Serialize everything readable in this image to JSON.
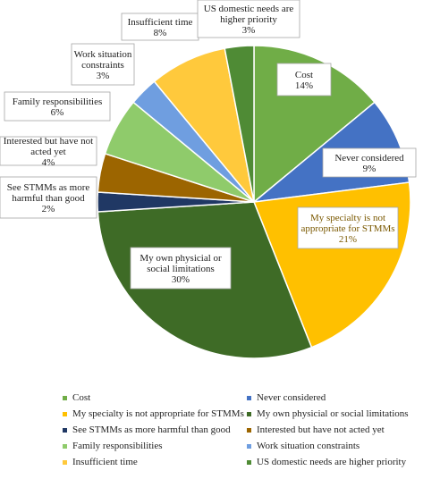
{
  "chart_data": {
    "type": "pie",
    "title": "",
    "slices": [
      {
        "label": "Cost",
        "value": 14,
        "display": "14%",
        "color": "#70ad47",
        "chart_label": [
          "Cost"
        ]
      },
      {
        "label": "Never considered",
        "value": 9,
        "display": "9%",
        "color": "#4472c4",
        "chart_label": [
          "Never considered"
        ]
      },
      {
        "label": "My specialty is not appropriate for STMMs",
        "value": 21,
        "display": "21%",
        "color": "#ffc000",
        "chart_label": [
          "My specialty is not",
          "appropriate for STMMs"
        ]
      },
      {
        "label": "My own physicial or social limitations",
        "value": 30,
        "display": "30%",
        "color": "#3e6b26",
        "chart_label": [
          "My own physicial or",
          "social limitations"
        ]
      },
      {
        "label": "See STMMs as more harmful than good",
        "value": 2,
        "display": "2%",
        "color": "#203864",
        "chart_label": [
          "See STMMs as more",
          "harmful than good"
        ]
      },
      {
        "label": "Interested but have not acted yet",
        "value": 4,
        "display": "4%",
        "color": "#9c6500",
        "chart_label": [
          "Interested but have not",
          "acted yet"
        ]
      },
      {
        "label": "Family responsibilities",
        "value": 6,
        "display": "6%",
        "color": "#8fcb6b",
        "chart_label": [
          "Family responsibilities"
        ]
      },
      {
        "label": "Work situation constraints",
        "value": 3,
        "display": "3%",
        "color": "#6f9ee0",
        "chart_label": [
          "Work situation",
          "constraints"
        ]
      },
      {
        "label": "Insufficient time",
        "value": 8,
        "display": "8%",
        "color": "#ffc93c",
        "chart_label": [
          "Insufficient time"
        ]
      },
      {
        "label": "US domestic needs are higher priority",
        "value": 3,
        "display": "3%",
        "color": "#4f8b35",
        "chart_label": [
          "US domestic needs are",
          "higher priority"
        ]
      }
    ],
    "legend_position": "bottom",
    "legend_entries": [
      "Cost",
      "Never considered",
      "My specialty is not appropriate for STMMs",
      "My own physicial or social limitations",
      "See STMMs as more harmful than good",
      "Interested but have not acted yet",
      "Family responsibilities",
      "Work situation constraints",
      "Insufficient time",
      "US domestic needs are higher priority"
    ]
  }
}
